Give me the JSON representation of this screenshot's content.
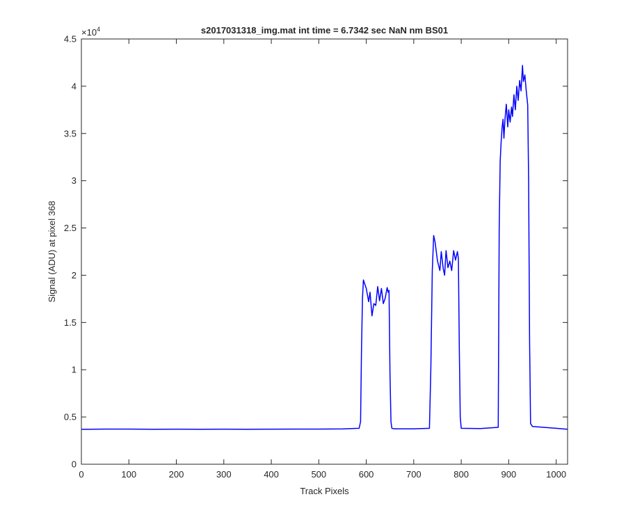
{
  "chart_data": {
    "type": "line",
    "title": "s2017031318_img.mat int time = 6.7342 sec  NaN nm BS01",
    "xlabel": "Track Pixels",
    "ylabel": "Signal (ADU) at pixel 368",
    "xlim": [
      0,
      1024
    ],
    "ylim": [
      0,
      45000
    ],
    "grid": false,
    "y_exponent_base": "×10",
    "y_exponent_power": "4",
    "x_ticks": [
      0,
      100,
      200,
      300,
      400,
      500,
      600,
      700,
      800,
      900,
      1000
    ],
    "x_tick_labels": [
      "0",
      "100",
      "200",
      "300",
      "400",
      "500",
      "600",
      "700",
      "800",
      "900",
      "1000"
    ],
    "y_ticks": [
      0,
      5000,
      10000,
      15000,
      20000,
      25000,
      30000,
      35000,
      40000,
      45000
    ],
    "y_tick_labels": [
      "0",
      "0.5",
      "1",
      "1.5",
      "2",
      "2.5",
      "3",
      "3.5",
      "4",
      "4.5"
    ],
    "series": [
      {
        "color": "#0000ff",
        "x": [
          0,
          50,
          100,
          150,
          200,
          250,
          300,
          350,
          400,
          450,
          500,
          550,
          585,
          588,
          590,
          592,
          594,
          596,
          600,
          605,
          608,
          612,
          616,
          620,
          624,
          628,
          632,
          636,
          640,
          644,
          646,
          648,
          650,
          652,
          654,
          656,
          660,
          700,
          733,
          736,
          739,
          742,
          745,
          750,
          755,
          758,
          762,
          765,
          768,
          772,
          776,
          780,
          784,
          788,
          792,
          794,
          796,
          798,
          800,
          840,
          878,
          880,
          882,
          884,
          886,
          888,
          890,
          892,
          895,
          898,
          900,
          903,
          906,
          908,
          911,
          914,
          917,
          920,
          923,
          926,
          929,
          931,
          934,
          937,
          940,
          942,
          944,
          946,
          950,
          1000,
          1024
        ],
        "y": [
          3700,
          3720,
          3720,
          3700,
          3710,
          3700,
          3710,
          3700,
          3710,
          3720,
          3720,
          3740,
          3800,
          4500,
          12000,
          17500,
          19500,
          19200,
          18600,
          17200,
          18200,
          15700,
          17000,
          16800,
          18800,
          17300,
          18600,
          17000,
          17600,
          18700,
          18200,
          18400,
          9500,
          4500,
          3800,
          3780,
          3750,
          3750,
          3800,
          10000,
          20500,
          24200,
          23500,
          21500,
          20500,
          22500,
          20700,
          20000,
          22600,
          20800,
          21500,
          20500,
          22600,
          21600,
          22500,
          21800,
          12000,
          5000,
          3800,
          3780,
          3900,
          25000,
          32000,
          34000,
          35600,
          36500,
          34500,
          36400,
          38100,
          35700,
          37500,
          36200,
          37800,
          36800,
          39100,
          37500,
          40000,
          38500,
          40600,
          39500,
          42200,
          40500,
          41200,
          39500,
          38000,
          30000,
          13000,
          4300,
          4000,
          3800,
          3700
        ]
      }
    ]
  }
}
